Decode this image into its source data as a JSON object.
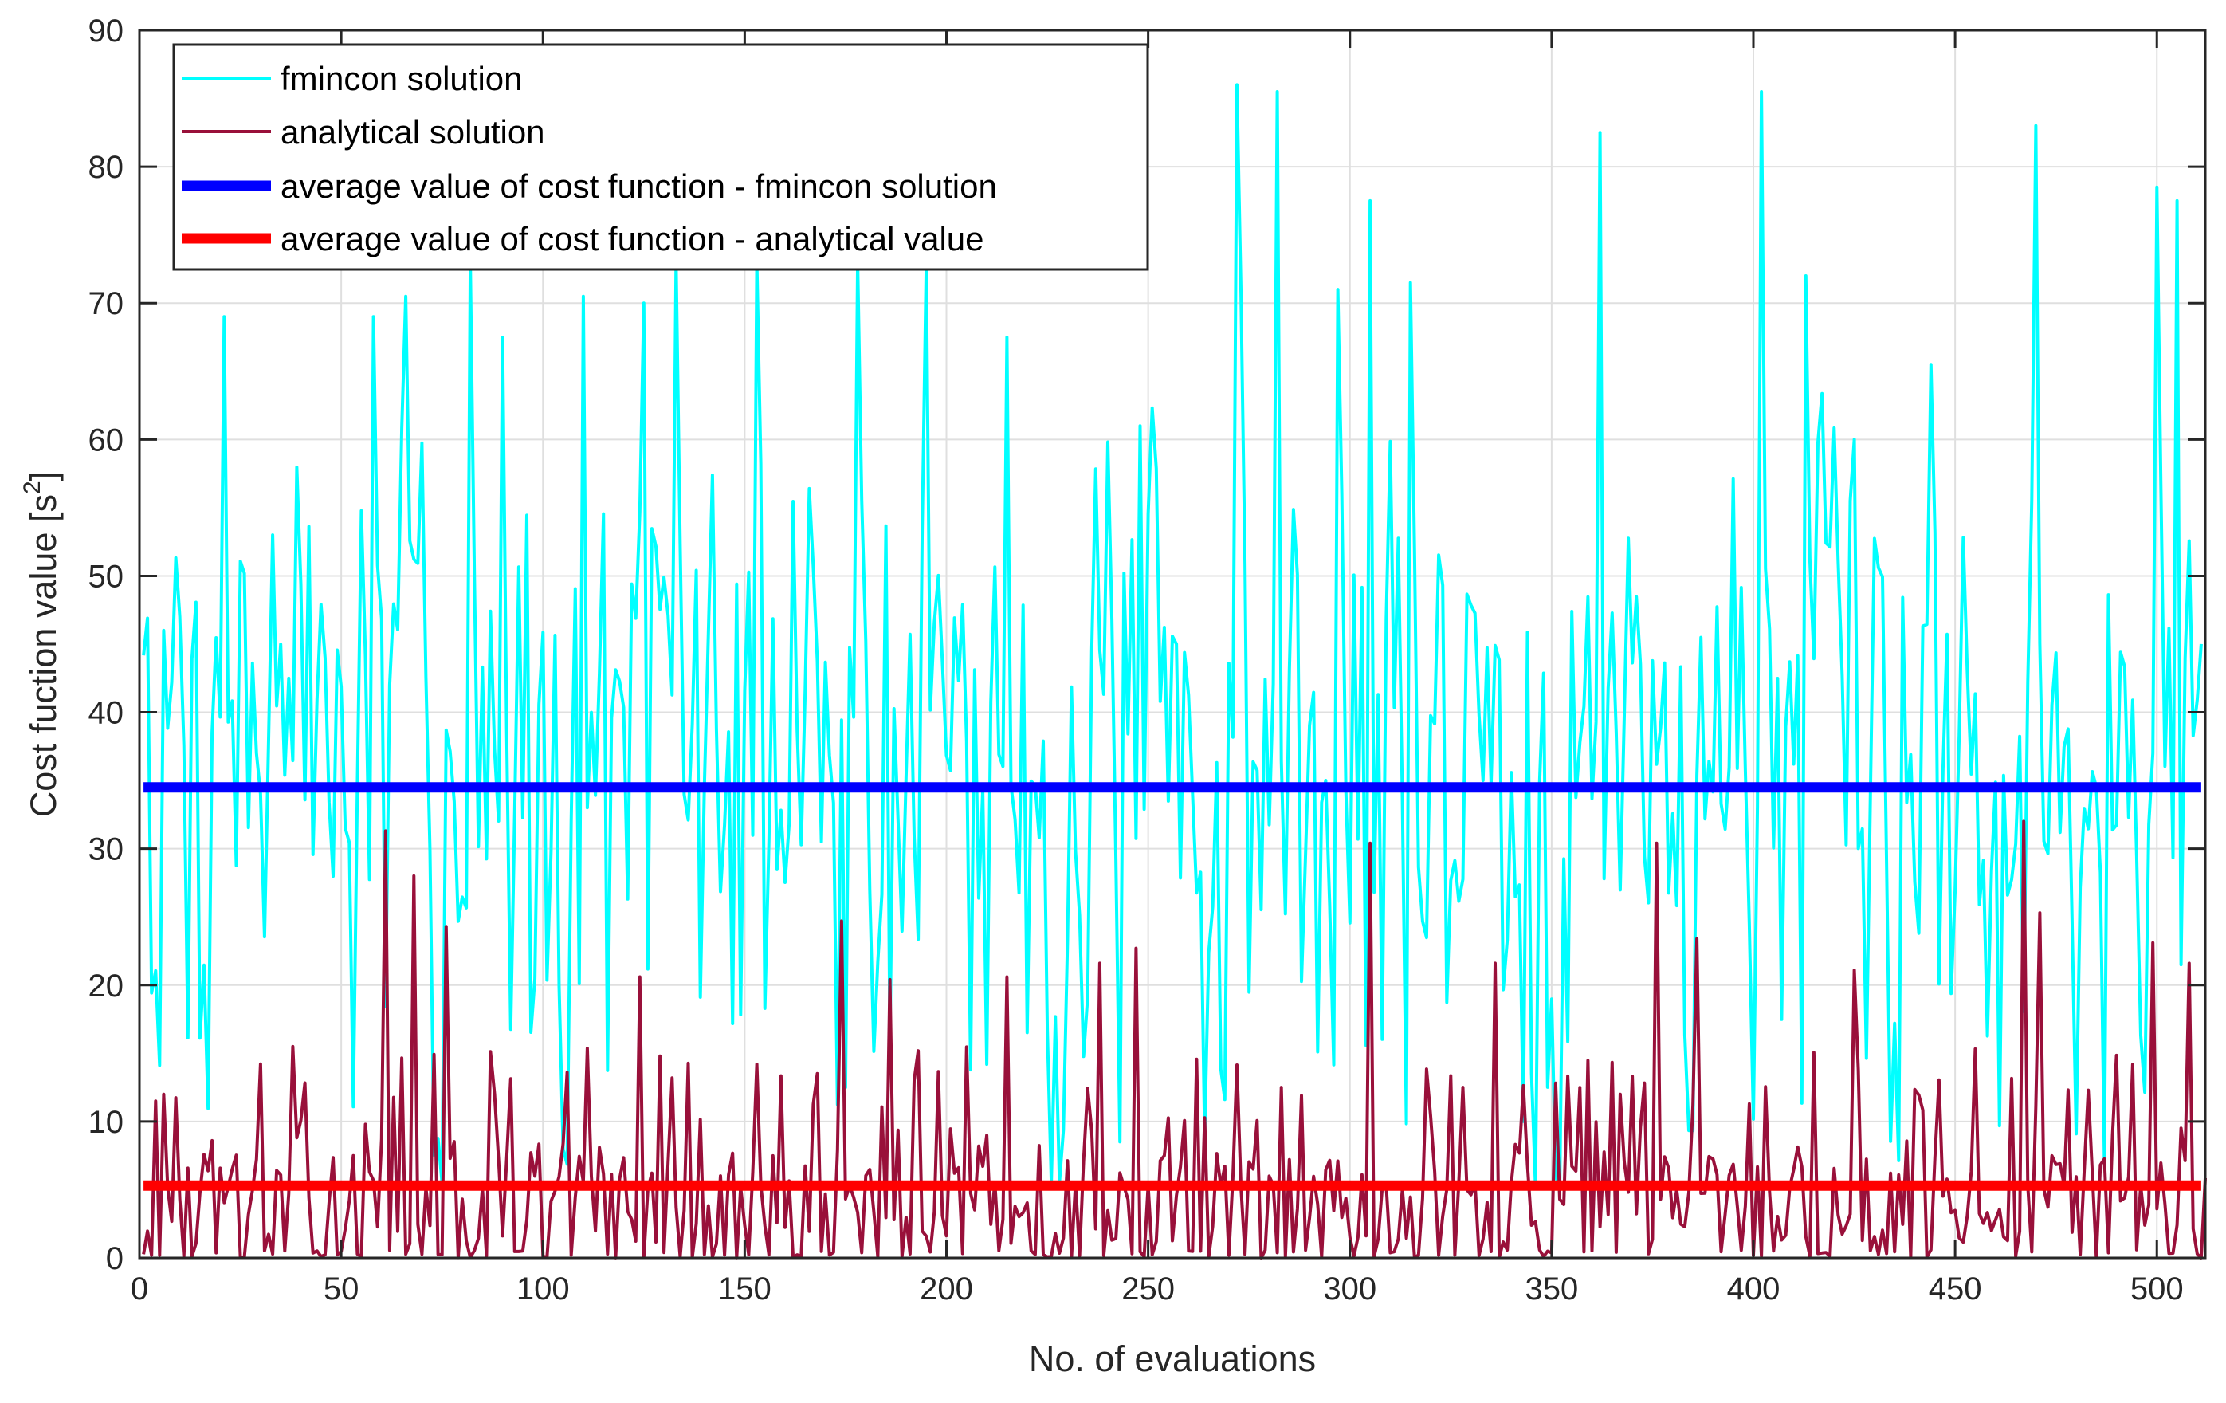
{
  "chart_data": {
    "type": "line",
    "title": "",
    "xlabel": "No. of evaluations",
    "ylabel": "Cost fuction value [s",
    "ylabel_superscript": "2",
    "ylabel_suffix": "]",
    "xlim": [
      0,
      512
    ],
    "ylim": [
      0,
      90
    ],
    "xticks": [
      0,
      50,
      100,
      150,
      200,
      250,
      300,
      350,
      400,
      450,
      500
    ],
    "yticks": [
      0,
      10,
      20,
      30,
      40,
      50,
      60,
      70,
      80,
      90
    ],
    "grid": true,
    "legend_location": "top-left",
    "series": [
      {
        "name": "fmincon solution",
        "color": "#00ffff",
        "kind": "noisy-line",
        "x_range": [
          1,
          511
        ],
        "seed": 7,
        "min": 0,
        "max": 86,
        "mean": 34.5,
        "peaks": [
          [
            21,
            69
          ],
          [
            33,
            53
          ],
          [
            58,
            69
          ],
          [
            66,
            70.5
          ],
          [
            82,
            73
          ],
          [
            90,
            67.5
          ],
          [
            110,
            70.5
          ],
          [
            125,
            70
          ],
          [
            133,
            73
          ],
          [
            153,
            73
          ],
          [
            178,
            73
          ],
          [
            195,
            73
          ],
          [
            215,
            67.5
          ],
          [
            248,
            61
          ],
          [
            272,
            86
          ],
          [
            282,
            85.5
          ],
          [
            297,
            71
          ],
          [
            305,
            77.5
          ],
          [
            315,
            71.5
          ],
          [
            362,
            82.5
          ],
          [
            402,
            85.5
          ],
          [
            413,
            72
          ],
          [
            444,
            65.5
          ],
          [
            470,
            83
          ],
          [
            500,
            78.5
          ],
          [
            505,
            77.5
          ]
        ]
      },
      {
        "name": "analytical solution",
        "color": "#99103a",
        "kind": "noisy-line",
        "x_range": [
          1,
          512
        ],
        "seed": 13,
        "min": 0,
        "max": 32,
        "mean": 5.3,
        "peaks": [
          [
            6,
            12
          ],
          [
            61,
            31.3
          ],
          [
            68,
            28
          ],
          [
            76,
            24.3
          ],
          [
            124,
            20.6
          ],
          [
            129,
            14.8
          ],
          [
            174,
            24.7
          ],
          [
            186,
            20.4
          ],
          [
            215,
            20.6
          ],
          [
            238,
            21.6
          ],
          [
            247,
            22.7
          ],
          [
            305,
            30.4
          ],
          [
            336,
            21.6
          ],
          [
            376,
            30.4
          ],
          [
            386,
            23.4
          ],
          [
            425,
            21.1
          ],
          [
            467,
            32.3
          ],
          [
            471,
            25.3
          ],
          [
            499,
            23.1
          ],
          [
            508,
            21.6
          ]
        ]
      },
      {
        "name": "average value of cost function - fmincon solution",
        "color": "#0000ff",
        "kind": "hline",
        "x": [
          1,
          511
        ],
        "y": 34.5
      },
      {
        "name": "average value of cost function - analytical value",
        "color": "#ff0000",
        "kind": "hline",
        "x": [
          1,
          511
        ],
        "y": 5.3
      }
    ]
  }
}
